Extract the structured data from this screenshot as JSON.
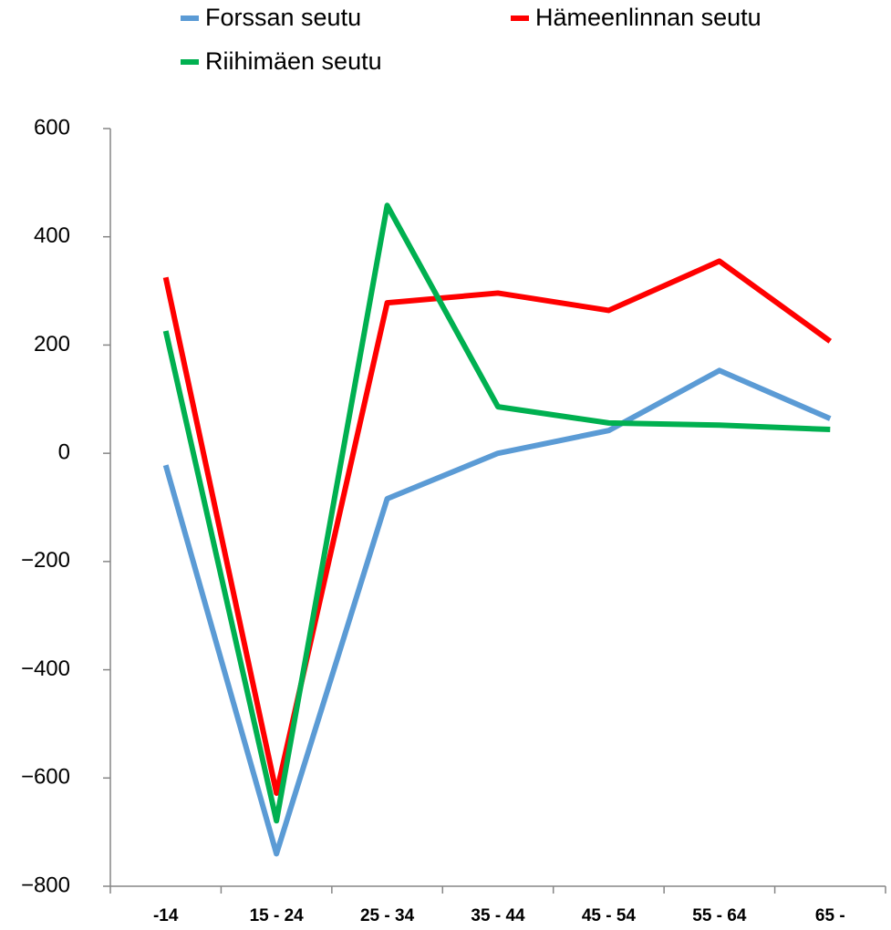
{
  "chart_data": {
    "type": "line",
    "categories": [
      "-14",
      "15 - 24",
      "25 - 34",
      "35 - 44",
      "45 - 54",
      "55 - 64",
      "65 -"
    ],
    "series": [
      {
        "name": "Forssan seutu",
        "color": "#5b9bd5",
        "values": [
          -22,
          -740,
          -84,
          0,
          42,
          153,
          64
        ]
      },
      {
        "name": "Hämeenlinnan seutu",
        "color": "#ff0000",
        "values": [
          325,
          -628,
          278,
          296,
          264,
          355,
          207
        ]
      },
      {
        "name": "Riihimäen seutu",
        "color": "#00b050",
        "values": [
          226,
          -679,
          458,
          86,
          56,
          52,
          44
        ]
      }
    ],
    "ylim": [
      -800,
      600
    ],
    "yticks": [
      {
        "value": -800,
        "label": "−800"
      },
      {
        "value": -600,
        "label": "−600"
      },
      {
        "value": -400,
        "label": "−400"
      },
      {
        "value": -200,
        "label": "−200"
      },
      0,
      200,
      400,
      600
    ],
    "grid": false
  }
}
